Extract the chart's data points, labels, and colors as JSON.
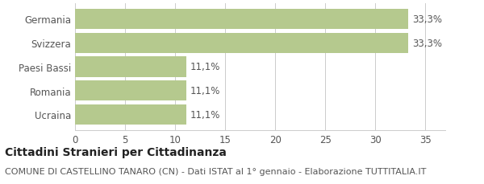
{
  "categories": [
    "Ucraina",
    "Romania",
    "Paesi Bassi",
    "Svizzera",
    "Germania"
  ],
  "values": [
    11.1,
    11.1,
    11.1,
    33.3,
    33.3
  ],
  "labels": [
    "11,1%",
    "11,1%",
    "11,1%",
    "33,3%",
    "33,3%"
  ],
  "bar_color": "#b5c98e",
  "xlim": [
    0,
    37
  ],
  "xticks": [
    0,
    5,
    10,
    15,
    20,
    25,
    30,
    35
  ],
  "title_bold": "Cittadini Stranieri per Cittadinanza",
  "subtitle": "COMUNE DI CASTELLINO TANARO (CN) - Dati ISTAT al 1° gennaio - Elaborazione TUTTITALIA.IT",
  "title_fontsize": 10,
  "subtitle_fontsize": 8,
  "label_fontsize": 8.5,
  "tick_fontsize": 8.5,
  "ytick_fontsize": 8.5,
  "bg_color": "#ffffff",
  "grid_color": "#cccccc",
  "text_color": "#555555",
  "bar_height": 0.85
}
